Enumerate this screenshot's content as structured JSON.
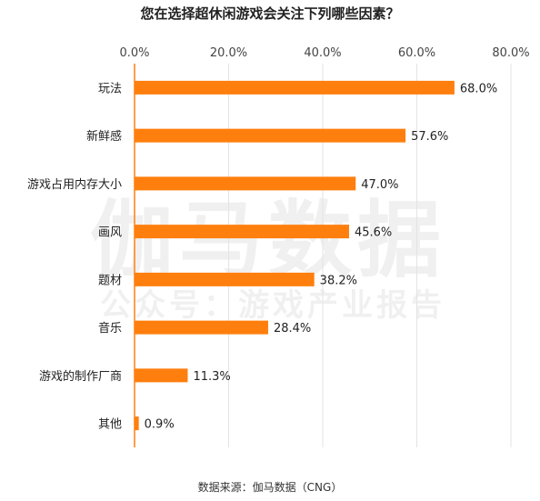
{
  "chart_data": {
    "type": "bar",
    "orientation": "horizontal",
    "title": "您在选择超休闲游戏会关注下列哪些因素？",
    "categories": [
      "玩法",
      "新鲜感",
      "游戏占用内存大小",
      "画风",
      "题材",
      "音乐",
      "游戏的制作厂商",
      "其他"
    ],
    "values": [
      68.0,
      57.6,
      47.0,
      45.6,
      38.2,
      28.4,
      11.3,
      0.9
    ],
    "value_labels": [
      "68.0%",
      "57.6%",
      "47.0%",
      "45.6%",
      "38.2%",
      "28.4%",
      "11.3%",
      "0.9%"
    ],
    "x_ticks": [
      "0.0%",
      "20.0%",
      "40.0%",
      "60.0%",
      "80.0%"
    ],
    "xlim": [
      0,
      80
    ],
    "axis_position": "top",
    "grid": true,
    "bar_color": "#ff7f0e"
  },
  "watermark": {
    "main": "伽马数据",
    "sub": "公众号：游戏产业报告"
  },
  "source": "数据来源：伽马数据（CNG）"
}
